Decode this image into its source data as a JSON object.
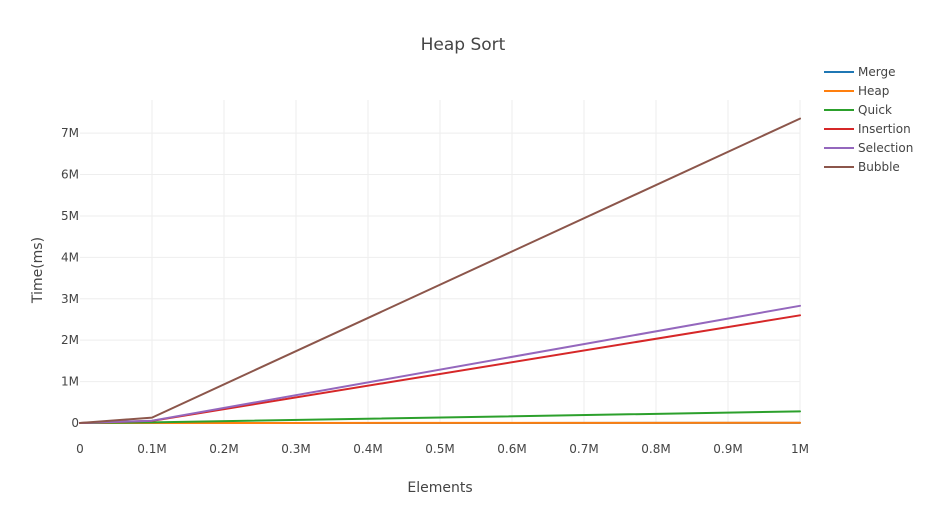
{
  "chart_data": {
    "type": "line",
    "title": "Heap Sort",
    "xlabel": "Elements",
    "ylabel": "Time(ms)",
    "x": [
      0,
      100000,
      1000000
    ],
    "xlim": [
      0,
      1000000
    ],
    "ylim": [
      0,
      7800000
    ],
    "x_ticks": [
      {
        "value": 0,
        "label": "0"
      },
      {
        "value": 100000,
        "label": "0.1M"
      },
      {
        "value": 200000,
        "label": "0.2M"
      },
      {
        "value": 300000,
        "label": "0.3M"
      },
      {
        "value": 400000,
        "label": "0.4M"
      },
      {
        "value": 500000,
        "label": "0.5M"
      },
      {
        "value": 600000,
        "label": "0.6M"
      },
      {
        "value": 700000,
        "label": "0.7M"
      },
      {
        "value": 800000,
        "label": "0.8M"
      },
      {
        "value": 900000,
        "label": "0.9M"
      },
      {
        "value": 1000000,
        "label": "1M"
      }
    ],
    "y_ticks": [
      {
        "value": 0,
        "label": "0"
      },
      {
        "value": 1000000,
        "label": "1M"
      },
      {
        "value": 2000000,
        "label": "2M"
      },
      {
        "value": 3000000,
        "label": "3M"
      },
      {
        "value": 4000000,
        "label": "4M"
      },
      {
        "value": 5000000,
        "label": "5M"
      },
      {
        "value": 6000000,
        "label": "6M"
      },
      {
        "value": 7000000,
        "label": "7M"
      }
    ],
    "grid": true,
    "legend_position": "top-right",
    "series": [
      {
        "name": "Merge",
        "color": "#1f77b4",
        "values": [
          0,
          500,
          3000
        ]
      },
      {
        "name": "Heap",
        "color": "#ff7f0e",
        "values": [
          0,
          1000,
          5000
        ]
      },
      {
        "name": "Quick",
        "color": "#2ca02c",
        "values": [
          0,
          15000,
          280000
        ]
      },
      {
        "name": "Insertion",
        "color": "#d62728",
        "values": [
          0,
          50000,
          2600000
        ]
      },
      {
        "name": "Selection",
        "color": "#9467bd",
        "values": [
          0,
          55000,
          2830000
        ]
      },
      {
        "name": "Bubble",
        "color": "#8c564b",
        "values": [
          0,
          130000,
          7350000
        ]
      }
    ]
  }
}
